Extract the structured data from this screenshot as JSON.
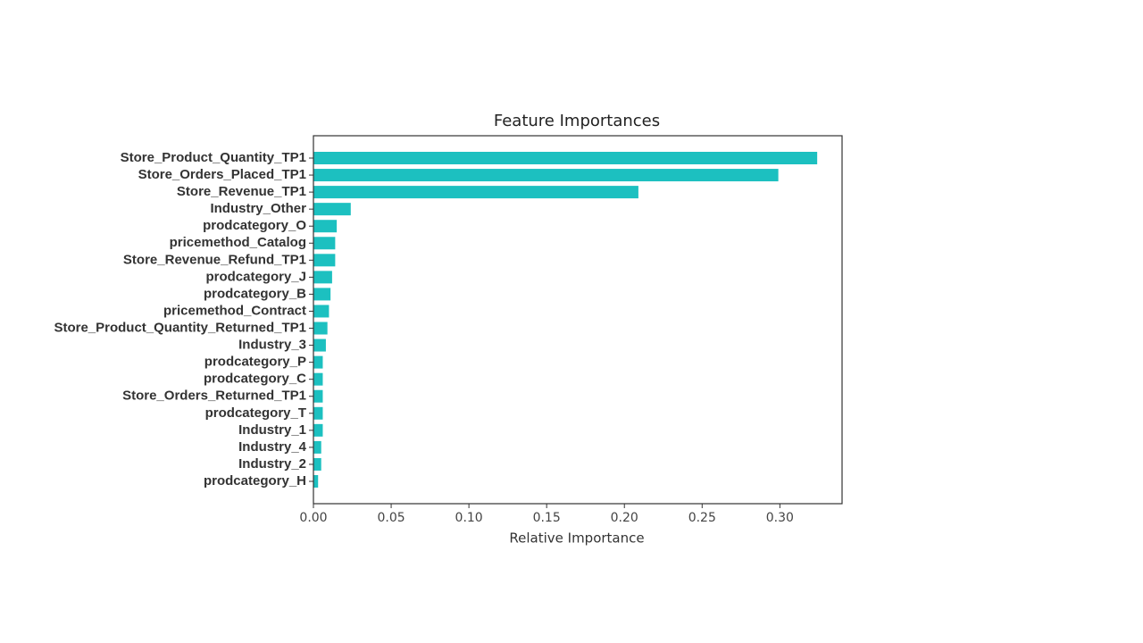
{
  "chart_data": {
    "type": "barh",
    "title": "Feature Importances",
    "xlabel": "Relative Importance",
    "categories": [
      "Store_Product_Quantity_TP1",
      "Store_Orders_Placed_TP1",
      "Store_Revenue_TP1",
      "Industry_Other",
      "prodcategory_O",
      "pricemethod_Catalog",
      "Store_Revenue_Refund_TP1",
      "prodcategory_J",
      "prodcategory_B",
      "pricemethod_Contract",
      "Store_Product_Quantity_Returned_TP1",
      "Industry_3",
      "prodcategory_P",
      "prodcategory_C",
      "Store_Orders_Returned_TP1",
      "prodcategory_T",
      "Industry_1",
      "Industry_4",
      "Industry_2",
      "prodcategory_H"
    ],
    "values": [
      0.324,
      0.299,
      0.209,
      0.024,
      0.015,
      0.014,
      0.014,
      0.012,
      0.011,
      0.01,
      0.009,
      0.008,
      0.006,
      0.006,
      0.006,
      0.006,
      0.006,
      0.005,
      0.005,
      0.003
    ],
    "color": "#1cc0c0",
    "xlim": [
      0,
      0.34
    ],
    "xticks": [
      {
        "value": 0,
        "label": "0.00"
      },
      {
        "value": 0.05,
        "label": "0.05"
      },
      {
        "value": 0.1,
        "label": "0.10"
      },
      {
        "value": 0.15,
        "label": "0.15"
      },
      {
        "value": 0.2,
        "label": "0.20"
      },
      {
        "value": 0.25,
        "label": "0.25"
      },
      {
        "value": 0.3,
        "label": "0.30"
      }
    ]
  }
}
